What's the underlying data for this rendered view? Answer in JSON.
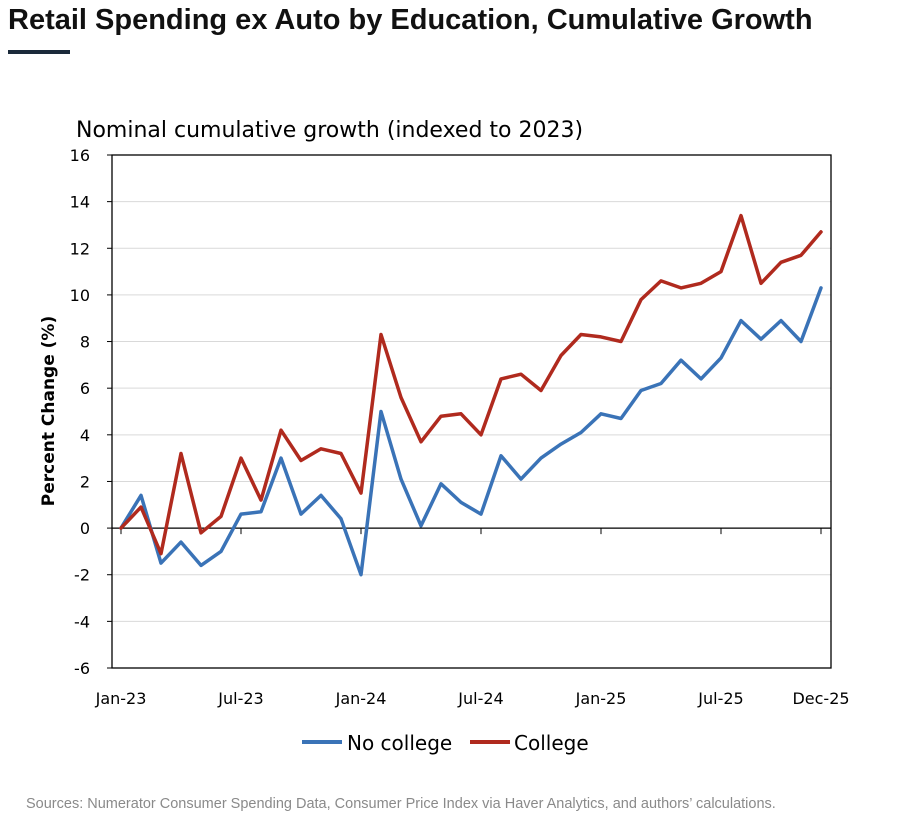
{
  "page": {
    "title": "Retail Spending ex Auto by Education, Cumulative Growth",
    "source": "Sources: Numerator Consumer Spending Data, Consumer Price Index via Haver Analytics, and authors’ calculations."
  },
  "chart_data": {
    "type": "line",
    "title": "Nominal cumulative growth (indexed to 2023)",
    "xlabel": "",
    "ylabel": "Percent Change (%)",
    "ylim": [
      -6,
      16
    ],
    "yticks": [
      -6,
      -4,
      -2,
      0,
      2,
      4,
      6,
      8,
      10,
      12,
      14,
      16
    ],
    "xtick_labels": [
      {
        "label": "Jan-23",
        "index": 0
      },
      {
        "label": "Jul-23",
        "index": 6
      },
      {
        "label": "Jan-24",
        "index": 12
      },
      {
        "label": "Jul-24",
        "index": 18
      },
      {
        "label": "Jan-25",
        "index": 24
      },
      {
        "label": "Jul-25",
        "index": 30
      },
      {
        "label": "Dec-25",
        "index": 35
      }
    ],
    "x": [
      "Jan-23",
      "Feb-23",
      "Mar-23",
      "Apr-23",
      "May-23",
      "Jun-23",
      "Jul-23",
      "Aug-23",
      "Sep-23",
      "Oct-23",
      "Nov-23",
      "Dec-23",
      "Jan-24",
      "Feb-24",
      "Mar-24",
      "Apr-24",
      "May-24",
      "Jun-24",
      "Jul-24",
      "Aug-24",
      "Sep-24",
      "Oct-24",
      "Nov-24",
      "Dec-24",
      "Jan-25",
      "Feb-25",
      "Mar-25",
      "Apr-25",
      "May-25",
      "Jun-25",
      "Jul-25",
      "Aug-25",
      "Sep-25",
      "Oct-25",
      "Nov-25",
      "Dec-25"
    ],
    "grid": true,
    "legend_position": "bottom",
    "series": [
      {
        "name": "No college",
        "color": "#3a73b7",
        "values": [
          0,
          1.4,
          -1.5,
          -0.6,
          -1.6,
          -1.0,
          0.6,
          0.7,
          3.0,
          0.6,
          1.4,
          0.4,
          -2.0,
          5.0,
          2.1,
          0.1,
          1.9,
          1.1,
          0.6,
          3.1,
          2.1,
          3.0,
          3.6,
          4.1,
          4.9,
          4.7,
          5.9,
          6.2,
          7.2,
          6.4,
          7.3,
          8.9,
          8.1,
          8.9,
          8.0,
          10.3
        ]
      },
      {
        "name": "College",
        "color": "#b02a1e",
        "values": [
          0,
          0.9,
          -1.1,
          3.2,
          -0.2,
          0.5,
          3.0,
          1.2,
          4.2,
          2.9,
          3.4,
          3.2,
          1.5,
          8.3,
          5.6,
          3.7,
          4.8,
          4.9,
          4.0,
          6.4,
          6.6,
          5.9,
          7.4,
          8.3,
          8.2,
          8.0,
          9.8,
          10.6,
          10.3,
          10.5,
          11.0,
          13.4,
          10.5,
          11.4,
          11.7,
          12.7
        ]
      }
    ]
  }
}
